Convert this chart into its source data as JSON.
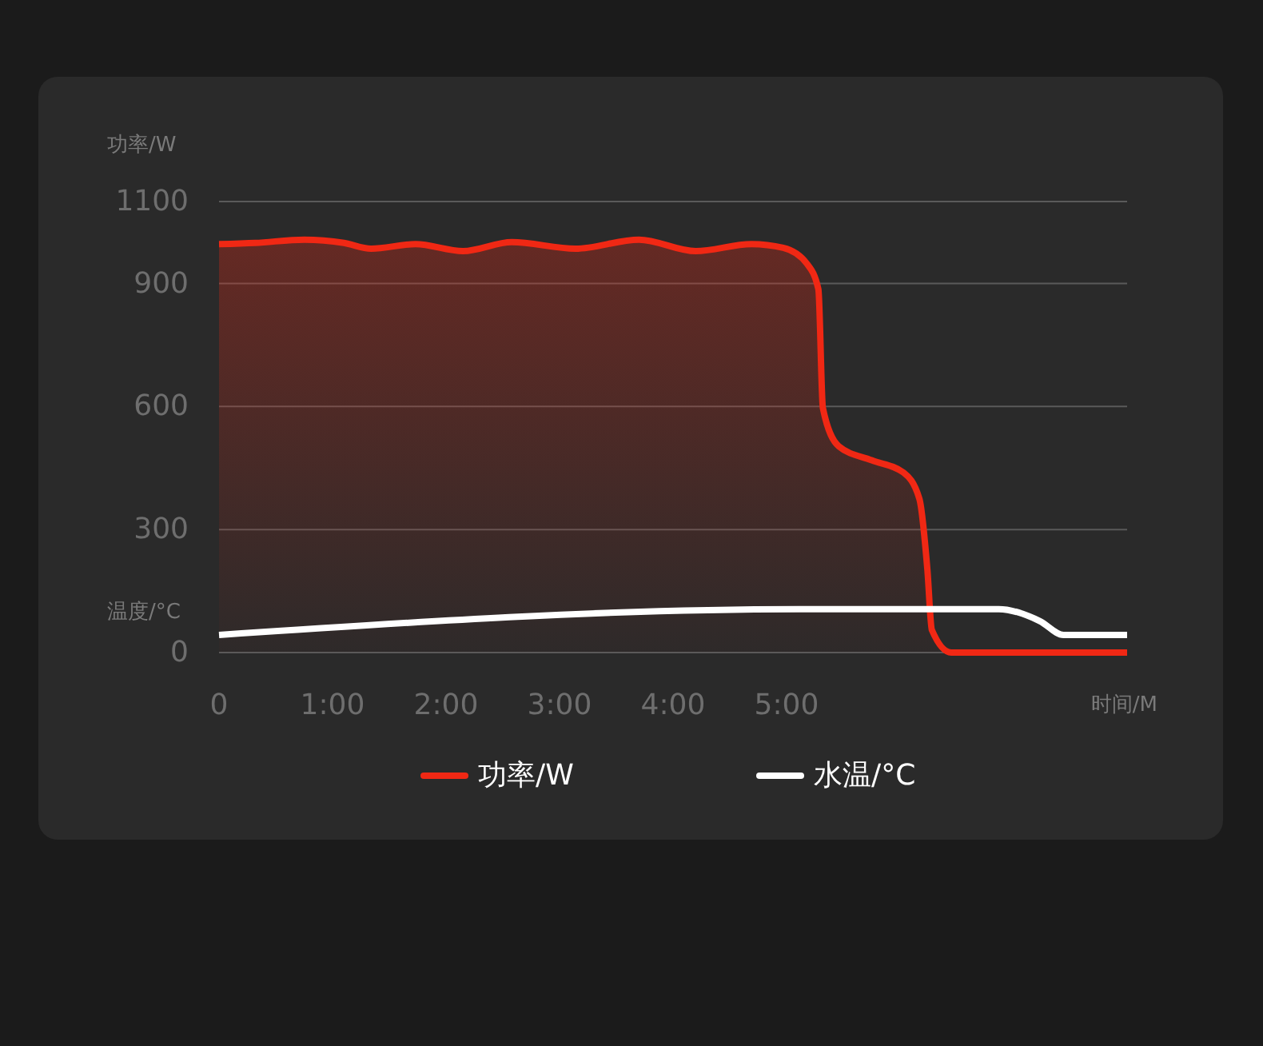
{
  "chart_data": {
    "type": "line",
    "ylabel": "功率/W",
    "xlabel": "时间/M",
    "annotations": [
      "温度/°C"
    ],
    "x": [
      0,
      0.32,
      0.75,
      1.1,
      1.34,
      1.73,
      2.15,
      2.58,
      3.14,
      3.7,
      4.2,
      4.69,
      4.97,
      5.18,
      5.28,
      5.32,
      5.46,
      5.75,
      6.03,
      6.17,
      6.24,
      6.28,
      6.45,
      8
    ],
    "series": [
      {
        "name": "功率/W",
        "type": "area",
        "color": "#f02814",
        "values": [
          996,
          999,
          1007,
          999,
          985,
          996,
          979,
          1001,
          985,
          1007,
          979,
          996,
          987,
          948,
          886,
          596,
          503,
          469,
          439,
          375,
          204,
          55,
          0,
          0
        ]
      },
      {
        "name": "水温/°C",
        "color": "#ffffff",
        "x": [
          0,
          5.11,
          6.87,
          7.23,
          7.44,
          8
        ],
        "values": [
          43,
          106,
          106,
          77,
          43,
          43
        ]
      }
    ],
    "xlim": [
      0,
      8
    ],
    "ylim": [
      0,
      1100
    ],
    "xticks": [
      0,
      {
        "value": 1,
        "label": "1:00"
      },
      {
        "value": 2,
        "label": "2:00"
      },
      {
        "value": 3,
        "label": "3:00"
      },
      {
        "value": 4,
        "label": "4:00"
      },
      {
        "value": 5,
        "label": "5:00"
      }
    ],
    "yticks": [
      0,
      300,
      600,
      900,
      1100
    ],
    "grid": "y",
    "legend": "bottom",
    "marker": "none",
    "line_style": "solid"
  }
}
